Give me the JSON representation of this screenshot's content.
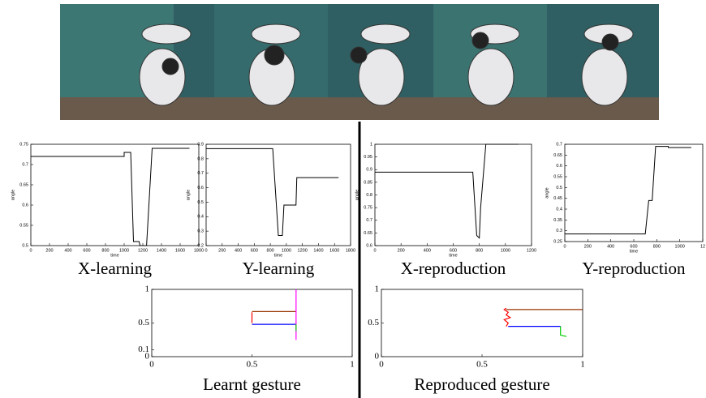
{
  "chart_data": [
    {
      "type": "line",
      "caption": "X-learning",
      "xlabel": "time",
      "ylabel": "angle",
      "xlim": [
        0,
        1800
      ],
      "xticks": [
        0,
        200,
        400,
        600,
        800,
        1000,
        1200,
        1400,
        1600,
        1800
      ],
      "ylim": [
        0.5,
        0.75
      ],
      "yticks": [
        0.5,
        0.55,
        0.6,
        0.65,
        0.7,
        0.75
      ],
      "series": [
        {
          "color": "#000000",
          "x": [
            0,
            1000,
            1000,
            1070,
            1100,
            1160,
            1170,
            1240,
            1300,
            1700
          ],
          "values": [
            0.72,
            0.72,
            0.73,
            0.73,
            0.51,
            0.51,
            0.5,
            0.5,
            0.74,
            0.74
          ]
        }
      ]
    },
    {
      "type": "line",
      "caption": "Y-learning",
      "xlabel": "time",
      "ylabel": "angle",
      "xlim": [
        0,
        1800
      ],
      "xticks": [
        0,
        200,
        400,
        600,
        800,
        1000,
        1200,
        1400,
        1600,
        1800
      ],
      "ylim": [
        0.2,
        0.9
      ],
      "yticks": [
        0.2,
        0.3,
        0.4,
        0.5,
        0.6,
        0.7,
        0.8,
        0.9
      ],
      "series": [
        {
          "color": "#000000",
          "x": [
            0,
            830,
            900,
            950,
            970,
            1120,
            1130,
            1200,
            1650
          ],
          "values": [
            0.87,
            0.87,
            0.27,
            0.27,
            0.48,
            0.48,
            0.67,
            0.67,
            0.67
          ]
        }
      ]
    },
    {
      "type": "line",
      "caption": "X-reproduction",
      "xlabel": "time",
      "ylabel": "angle",
      "xlim": [
        0,
        1200
      ],
      "xticks": [
        0,
        200,
        400,
        600,
        800,
        1000,
        1200
      ],
      "ylim": [
        0.6,
        1
      ],
      "yticks": [
        0.6,
        0.65,
        0.7,
        0.75,
        0.8,
        0.85,
        0.9,
        0.95,
        1
      ],
      "series": [
        {
          "color": "#000000",
          "x": [
            0,
            750,
            780,
            800,
            810,
            850,
            1100
          ],
          "values": [
            0.89,
            0.89,
            0.64,
            0.63,
            0.75,
            1.0,
            1.0
          ]
        }
      ]
    },
    {
      "type": "line",
      "caption": "Y-reproduction",
      "xlabel": "time",
      "ylabel": "angle",
      "xlim": [
        0,
        1200
      ],
      "xticks": [
        0,
        200,
        400,
        600,
        800,
        1000,
        {
          "value": 1200,
          "label": "12"
        }
      ],
      "ylim": [
        0.25,
        0.7
      ],
      "yticks": [
        0.25,
        0.3,
        0.35,
        0.4,
        0.45,
        0.5,
        0.55,
        0.6,
        0.65,
        0.7
      ],
      "series": [
        {
          "color": "#000000",
          "x": [
            0,
            700,
            730,
            760,
            790,
            900,
            900,
            1100
          ],
          "values": [
            0.285,
            0.285,
            0.44,
            0.44,
            0.69,
            0.69,
            0.685,
            0.685
          ]
        }
      ]
    },
    {
      "type": "gesture",
      "caption": "Learnt gesture",
      "xlim": [
        0,
        1
      ],
      "xticks": [
        0,
        0.5,
        1
      ],
      "ylim": [
        0,
        1
      ],
      "yticks": [
        0,
        0.1,
        0.5,
        1
      ],
      "series": [
        {
          "color": "#993300",
          "x": [
            0.5,
            0.72
          ],
          "values": [
            0.67,
            0.67
          ]
        },
        {
          "color": "#0000ff",
          "x": [
            0.5,
            0.72
          ],
          "values": [
            0.48,
            0.48
          ]
        },
        {
          "color": "#ff0000",
          "x": [
            0.5,
            0.5
          ],
          "values": [
            0.5,
            0.66
          ]
        },
        {
          "color": "#ff00ff",
          "x": [
            0.72,
            0.72
          ],
          "values": [
            1.0,
            0.25
          ]
        },
        {
          "color": "#00cc00",
          "x": [
            0.72,
            0.72
          ],
          "values": [
            0.48,
            0.38
          ]
        }
      ]
    },
    {
      "type": "gesture",
      "caption": "Reproduced gesture",
      "xlim": [
        0,
        1
      ],
      "xticks": [
        0,
        0.5,
        1
      ],
      "ylim": [
        0,
        1
      ],
      "yticks": [
        0,
        0.5,
        1
      ],
      "series": [
        {
          "color": "#993300",
          "x": [
            0.62,
            1.0
          ],
          "values": [
            0.7,
            0.7
          ]
        },
        {
          "color": "#0000ff",
          "x": [
            0.63,
            0.89
          ],
          "values": [
            0.45,
            0.45
          ]
        },
        {
          "color": "#ff0000",
          "x": [
            0.62,
            0.63,
            0.61,
            0.64,
            0.62,
            0.63,
            0.61,
            0.62
          ],
          "values": [
            0.45,
            0.5,
            0.55,
            0.58,
            0.62,
            0.66,
            0.7,
            0.72
          ]
        },
        {
          "color": "#00cc00",
          "x": [
            0.89,
            0.89,
            0.92
          ],
          "values": [
            0.45,
            0.32,
            0.3
          ]
        }
      ]
    }
  ]
}
